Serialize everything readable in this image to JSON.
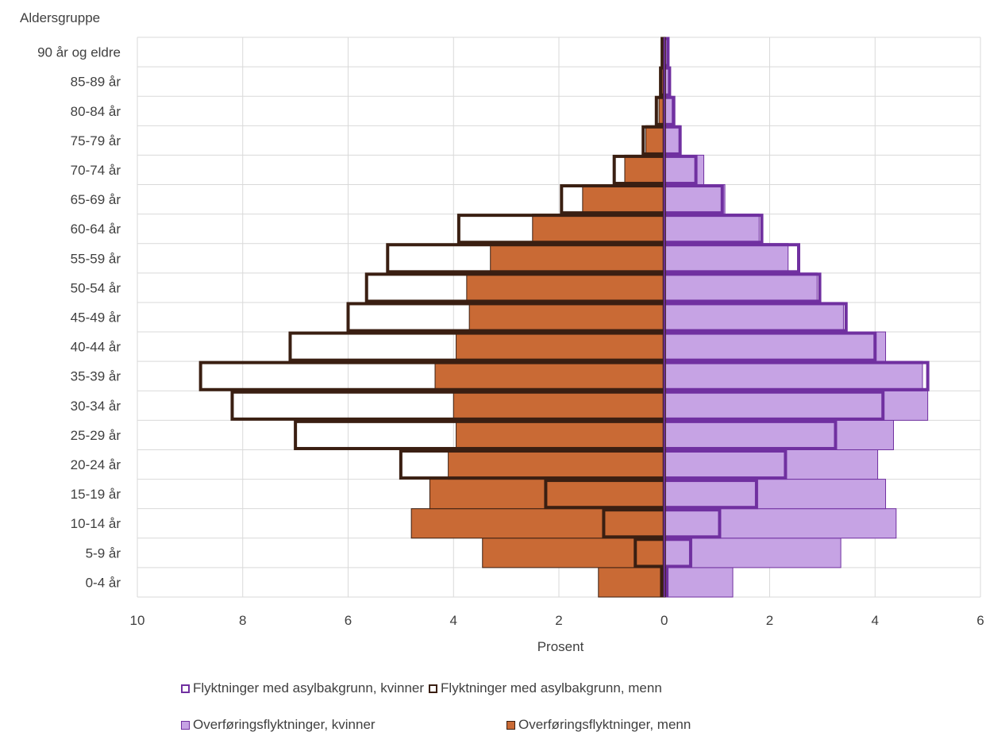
{
  "chart_data": {
    "type": "bar",
    "orientation": "horizontal",
    "subtype": "population-pyramid",
    "ylabel": "Aldersgruppe",
    "xlabel": "Prosent",
    "xlim": [
      -10,
      6
    ],
    "xticks": [
      -10,
      -8,
      -6,
      -4,
      -2,
      0,
      2,
      4,
      6
    ],
    "xtick_labels": [
      "10",
      "8",
      "6",
      "4",
      "2",
      "0",
      "2",
      "4",
      "6"
    ],
    "grid": true,
    "legend_position": "bottom",
    "categories": [
      "0-4 år",
      "5-9 år",
      "10-14 år",
      "15-19 år",
      "20-24 år",
      "25-29 år",
      "30-34 år",
      "35-39 år",
      "40-44 år",
      "45-49 år",
      "50-54 år",
      "55-59 år",
      "60-64 år",
      "65-69 år",
      "70-74 år",
      "75-79 år",
      "80-84 år",
      "85-89 år",
      "90 år og eldre"
    ],
    "series": [
      {
        "name": "Flyktninger med asylbakgrunn, kvinner",
        "style": "outline",
        "color": "#7030a0",
        "values": [
          0.05,
          0.5,
          1.05,
          1.75,
          2.3,
          3.25,
          4.15,
          5.0,
          4.0,
          3.45,
          2.95,
          2.55,
          1.85,
          1.1,
          0.6,
          0.3,
          0.18,
          0.1,
          0.07
        ]
      },
      {
        "name": "Flyktninger med asylbakgrunn, menn",
        "style": "outline",
        "color": "#3a1f12",
        "values": [
          -0.05,
          -0.55,
          -1.15,
          -2.25,
          -5.0,
          -7.0,
          -8.2,
          -8.8,
          -7.1,
          -6.0,
          -5.65,
          -5.25,
          -3.9,
          -1.95,
          -0.95,
          -0.4,
          -0.15,
          -0.07,
          -0.04
        ]
      },
      {
        "name": "Overføringsflyktninger, kvinner",
        "style": "filled",
        "color": "#c6a3e4",
        "values": [
          1.3,
          3.35,
          4.4,
          4.2,
          4.05,
          4.35,
          5.0,
          4.9,
          4.2,
          3.4,
          2.9,
          2.35,
          1.8,
          1.15,
          0.75,
          0.3,
          0.15,
          0.08,
          0.05
        ]
      },
      {
        "name": "Overføringsflyktninger, menn",
        "style": "filled",
        "color": "#c96a35",
        "values": [
          -1.25,
          -3.45,
          -4.8,
          -4.45,
          -4.1,
          -3.95,
          -4.0,
          -4.35,
          -3.95,
          -3.7,
          -3.75,
          -3.3,
          -2.5,
          -1.55,
          -0.75,
          -0.35,
          -0.1,
          -0.05,
          -0.03
        ]
      }
    ],
    "legend": [
      {
        "label": "Flyktninger med asylbakgrunn, kvinner",
        "color": "#7030a0",
        "style": "outline"
      },
      {
        "label": "Flyktninger med asylbakgrunn, menn",
        "color": "#3a1f12",
        "style": "outline"
      },
      {
        "label": "Overføringsflyktninger, kvinner",
        "color": "#c6a3e4",
        "style": "filled"
      },
      {
        "label": "Overføringsflyktninger, menn",
        "color": "#c96a35",
        "style": "filled"
      }
    ]
  }
}
